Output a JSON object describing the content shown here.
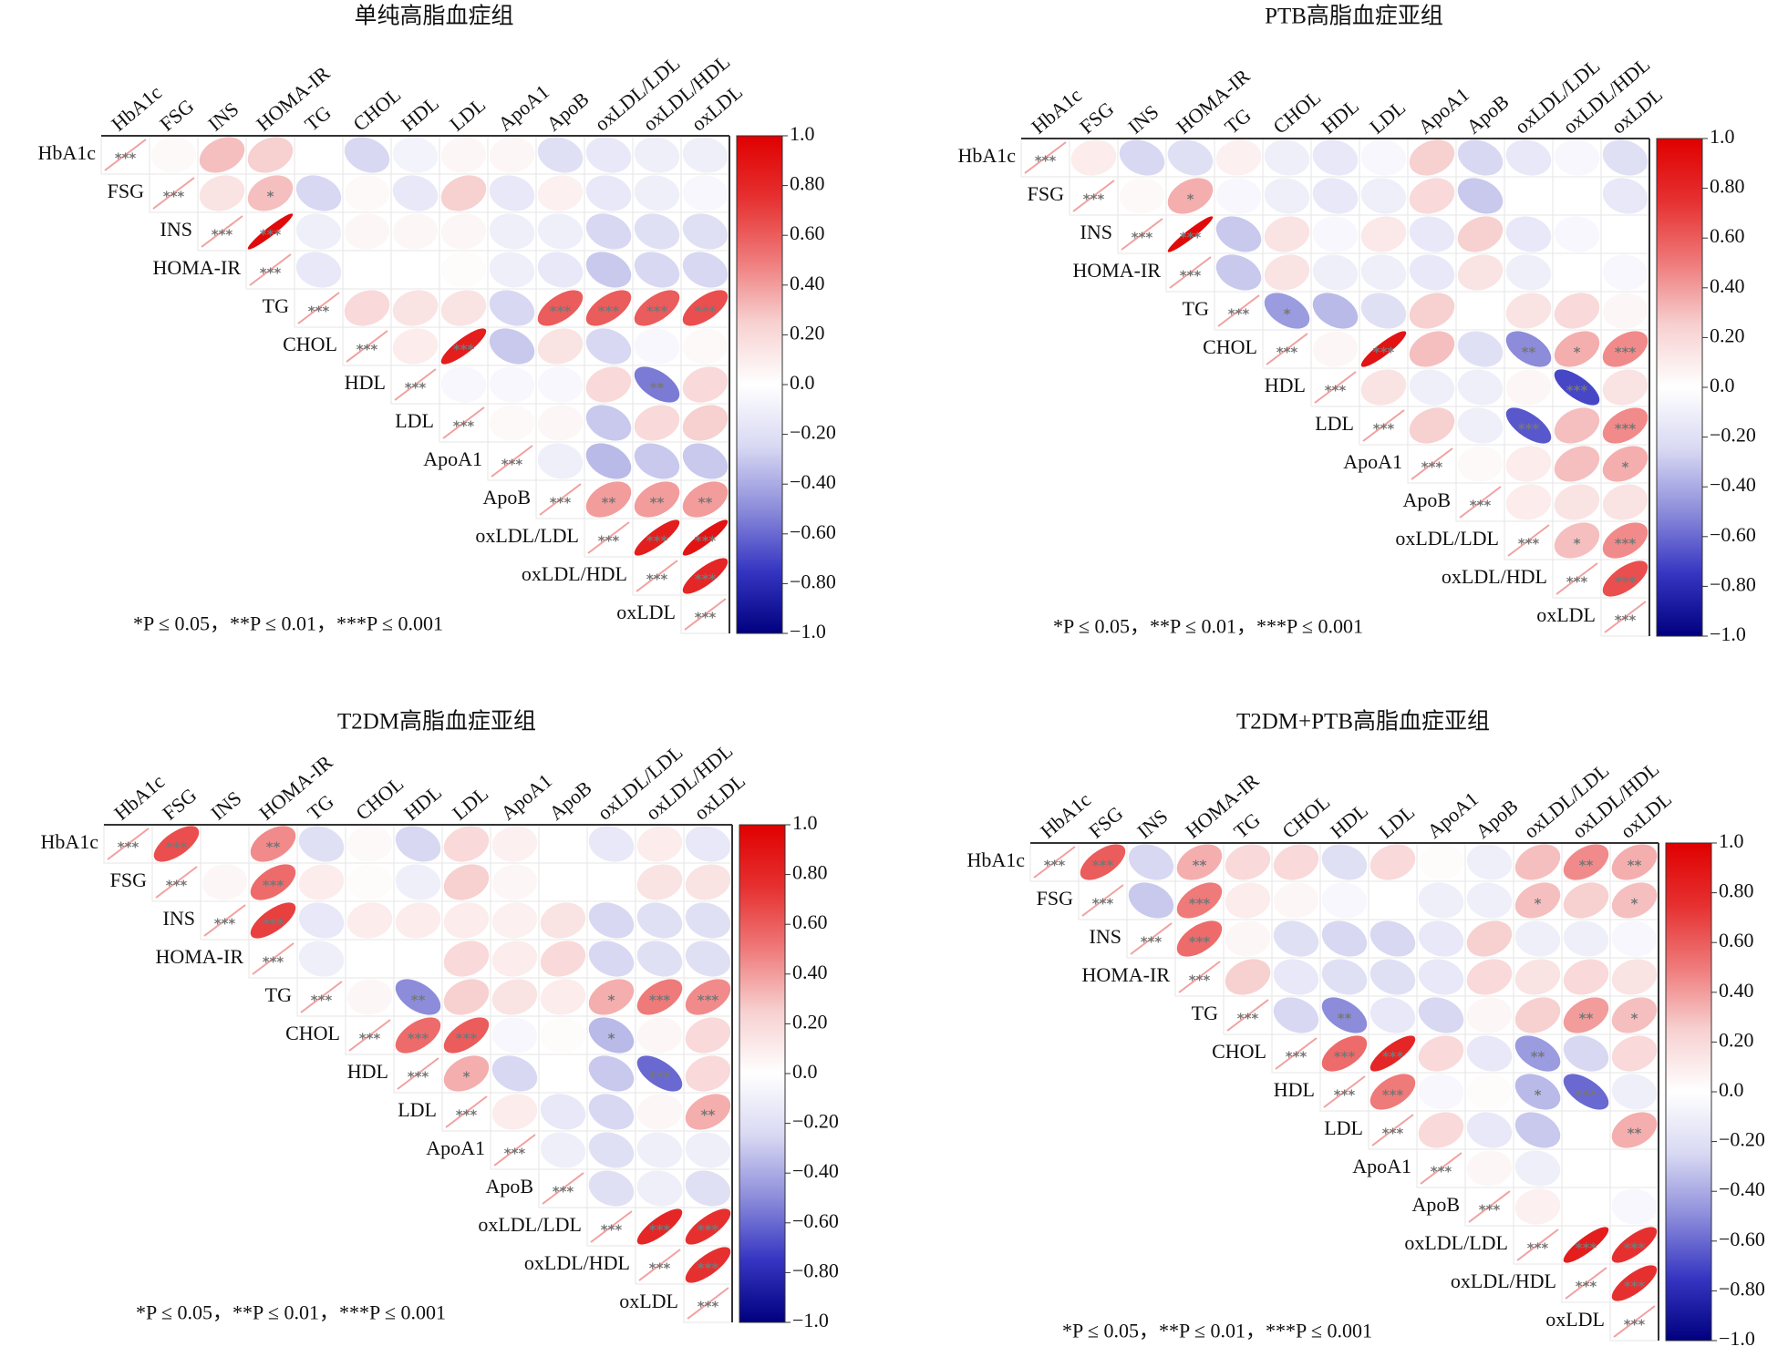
{
  "chart_data": [
    {
      "type": "correlation_matrix",
      "title": "单纯高脂血症组",
      "labels": [
        "HbA1c",
        "FSG",
        "INS",
        "HOMA-IR",
        "TG",
        "CHOL",
        "HDL",
        "LDL",
        "ApoA1",
        "ApoB",
        "oxLDL/LDL",
        "oxLDL/HDL",
        "oxLDL"
      ],
      "values": [
        [
          1,
          0.03,
          0.3,
          0.25,
          0,
          -0.25,
          -0.08,
          0.05,
          0.05,
          -0.2,
          -0.15,
          -0.1,
          -0.1
        ],
        [
          1,
          0.15,
          0.3,
          -0.25,
          0.03,
          -0.15,
          0.25,
          -0.15,
          0.08,
          -0.15,
          -0.1,
          -0.05
        ],
        [
          1,
          0.95,
          -0.1,
          0.05,
          0.05,
          0.05,
          -0.1,
          -0.1,
          -0.25,
          -0.2,
          -0.2
        ],
        [
          1,
          -0.15,
          0,
          0,
          0.02,
          -0.1,
          -0.15,
          -0.3,
          -0.25,
          -0.25
        ],
        [
          1,
          0.2,
          0.15,
          0.15,
          -0.25,
          0.6,
          0.6,
          0.6,
          0.65
        ],
        [
          1,
          0.1,
          0.85,
          -0.3,
          0.15,
          -0.25,
          -0.05,
          0.03
        ],
        [
          1,
          -0.05,
          -0.05,
          -0.05,
          0.2,
          -0.55,
          0.2
        ],
        [
          1,
          0.03,
          0.05,
          -0.3,
          0.2,
          0.25
        ],
        [
          1,
          -0.1,
          -0.35,
          -0.3,
          -0.3
        ],
        [
          1,
          0.4,
          0.4,
          0.4
        ],
        [
          1,
          0.85,
          0.9
        ],
        [
          1,
          0.8
        ],
        [
          1
        ]
      ],
      "stars": [
        [
          "***",
          null,
          null,
          null,
          null,
          null,
          null,
          null,
          null,
          null,
          null,
          null,
          null
        ],
        [
          "***",
          null,
          "*",
          null,
          null,
          null,
          null,
          null,
          null,
          null,
          null,
          null
        ],
        [
          "***",
          "***",
          null,
          null,
          null,
          null,
          null,
          null,
          null,
          null,
          null
        ],
        [
          "***",
          null,
          null,
          null,
          null,
          null,
          null,
          null,
          null,
          null
        ],
        [
          "***",
          null,
          null,
          null,
          null,
          "***",
          "***",
          "***",
          "***"
        ],
        [
          "***",
          null,
          "***",
          null,
          null,
          null,
          null,
          null
        ],
        [
          "***",
          null,
          null,
          null,
          null,
          "**",
          null
        ],
        [
          "***",
          null,
          null,
          null,
          null,
          null
        ],
        [
          "***",
          null,
          null,
          null,
          null
        ],
        [
          "***",
          "**",
          "**",
          "**"
        ],
        [
          "***",
          "***",
          "***"
        ],
        [
          "***",
          "***"
        ],
        [
          "***"
        ]
      ],
      "note": "*P ≤ 0.05，**P ≤ 0.01，***P ≤ 0.001",
      "clim": [
        -1,
        1
      ],
      "cticks": [
        {
          "value": 1,
          "label": "1.0"
        },
        {
          "value": 0.8,
          "label": "0.80"
        },
        {
          "value": 0.6,
          "label": "0.60"
        },
        {
          "value": 0.4,
          "label": "0.40"
        },
        {
          "value": 0.2,
          "label": "0.20"
        },
        {
          "value": 0,
          "label": "0.0"
        },
        {
          "value": -0.2,
          "label": "−0.20"
        },
        {
          "value": -0.4,
          "label": "−0.40"
        },
        {
          "value": -0.6,
          "label": "−0.60"
        },
        {
          "value": -0.8,
          "label": "−0.80"
        },
        {
          "value": -1,
          "label": "−1.0"
        }
      ],
      "colormap": [
        "#00007f",
        "#3535c2",
        "#8c8cdb",
        "#d8d8f3",
        "#ffffff",
        "#f7d0d0",
        "#ef7a7a",
        "#e63030",
        "#e00000"
      ]
    },
    {
      "type": "correlation_matrix",
      "title": "PTB高脂血症亚组",
      "labels": [
        "HbA1c",
        "FSG",
        "INS",
        "HOMA-IR",
        "TG",
        "CHOL",
        "HDL",
        "LDL",
        "ApoA1",
        "ApoB",
        "oxLDL/LDL",
        "oxLDL/HDL",
        "oxLDL"
      ],
      "values": [
        [
          1,
          0.1,
          -0.25,
          -0.2,
          0.08,
          -0.1,
          -0.15,
          -0.05,
          0.25,
          -0.25,
          -0.15,
          -0.05,
          -0.2
        ],
        [
          1,
          0.03,
          0.35,
          -0.05,
          -0.1,
          -0.15,
          -0.1,
          0.2,
          -0.3,
          0,
          0,
          -0.15
        ],
        [
          1,
          0.95,
          -0.3,
          0.15,
          -0.05,
          0.12,
          -0.15,
          0.25,
          -0.15,
          -0.05,
          0
        ],
        [
          1,
          -0.3,
          0.15,
          -0.1,
          -0.1,
          -0.15,
          0.15,
          -0.1,
          0,
          -0.05
        ],
        [
          1,
          -0.45,
          -0.35,
          -0.2,
          0.25,
          0,
          0.15,
          0.2,
          0.05
        ],
        [
          1,
          0.05,
          0.9,
          0.3,
          -0.2,
          -0.5,
          0.35,
          0.45
        ],
        [
          1,
          0.15,
          -0.1,
          -0.1,
          0.05,
          -0.7,
          0.15
        ],
        [
          1,
          0.25,
          -0.1,
          -0.65,
          0.3,
          0.45
        ],
        [
          1,
          0.03,
          0.1,
          0.3,
          0.35
        ],
        [
          1,
          0.1,
          0.15,
          0.15
        ],
        [
          1,
          0.3,
          0.45
        ],
        [
          1,
          0.65
        ],
        [
          1
        ]
      ],
      "stars": [
        [
          "***",
          null,
          null,
          null,
          null,
          null,
          null,
          null,
          null,
          null,
          null,
          null,
          null
        ],
        [
          "***",
          null,
          "*",
          null,
          null,
          null,
          null,
          null,
          null,
          null,
          null,
          null
        ],
        [
          "***",
          "***",
          null,
          null,
          null,
          null,
          null,
          null,
          null,
          null,
          null
        ],
        [
          "***",
          null,
          null,
          null,
          null,
          null,
          null,
          null,
          null,
          null
        ],
        [
          "***",
          "*",
          null,
          null,
          null,
          null,
          null,
          null,
          null
        ],
        [
          "***",
          null,
          "***",
          null,
          null,
          "**",
          "*",
          "***"
        ],
        [
          "***",
          null,
          null,
          null,
          null,
          "***",
          null
        ],
        [
          "***",
          null,
          null,
          "***",
          null,
          "***"
        ],
        [
          "***",
          null,
          null,
          null,
          "*"
        ],
        [
          "***",
          null,
          null,
          null
        ],
        [
          "***",
          "*",
          "***"
        ],
        [
          "***",
          "***"
        ],
        [
          "***"
        ]
      ],
      "note": "*P ≤ 0.05，**P ≤ 0.01，***P ≤ 0.001",
      "clim": [
        -1,
        1
      ],
      "cticks": [
        {
          "value": 1,
          "label": "1.0"
        },
        {
          "value": 0.8,
          "label": "0.80"
        },
        {
          "value": 0.6,
          "label": "0.60"
        },
        {
          "value": 0.4,
          "label": "0.40"
        },
        {
          "value": 0.2,
          "label": "0.20"
        },
        {
          "value": 0,
          "label": "0.0"
        },
        {
          "value": -0.2,
          "label": "−0.20"
        },
        {
          "value": -0.4,
          "label": "−0.40"
        },
        {
          "value": -0.6,
          "label": "−0.60"
        },
        {
          "value": -0.8,
          "label": "−0.80"
        },
        {
          "value": -1,
          "label": "−1.0"
        }
      ],
      "colormap": [
        "#00007f",
        "#3535c2",
        "#8c8cdb",
        "#d8d8f3",
        "#ffffff",
        "#f7d0d0",
        "#ef7a7a",
        "#e63030",
        "#e00000"
      ]
    },
    {
      "type": "correlation_matrix",
      "title": "T2DM高脂血症亚组",
      "labels": [
        "HbA1c",
        "FSG",
        "INS",
        "HOMA-IR",
        "TG",
        "CHOL",
        "HDL",
        "LDL",
        "ApoA1",
        "ApoB",
        "oxLDL/LDL",
        "oxLDL/HDL",
        "oxLDL"
      ],
      "values": [
        [
          1,
          0.65,
          0,
          0.45,
          -0.2,
          0.03,
          -0.25,
          0.2,
          0.08,
          0,
          -0.15,
          0.1,
          -0.15
        ],
        [
          1,
          0.05,
          0.55,
          0.1,
          0.02,
          -0.1,
          0.25,
          0.05,
          0,
          0,
          0.15,
          0.15
        ],
        [
          1,
          0.7,
          -0.15,
          0.1,
          0.1,
          0.1,
          0.08,
          0.15,
          -0.25,
          -0.2,
          -0.2
        ],
        [
          1,
          -0.1,
          0,
          0,
          0.2,
          0.1,
          0.2,
          -0.25,
          -0.2,
          -0.2
        ],
        [
          1,
          0.05,
          -0.5,
          0.25,
          0.15,
          0.1,
          0.35,
          0.5,
          0.45
        ],
        [
          1,
          0.55,
          0.6,
          -0.05,
          0.02,
          -0.35,
          0.05,
          0.2
        ],
        [
          1,
          0.35,
          -0.25,
          0,
          -0.3,
          -0.6,
          0.2
        ],
        [
          1,
          0.1,
          -0.15,
          -0.25,
          0.05,
          0.35
        ],
        [
          1,
          -0.1,
          -0.2,
          -0.1,
          -0.1
        ],
        [
          1,
          -0.2,
          -0.1,
          -0.2
        ],
        [
          1,
          0.8,
          0.75
        ],
        [
          1,
          0.75
        ],
        [
          1
        ]
      ],
      "stars": [
        [
          "***",
          "***",
          null,
          "**",
          null,
          null,
          null,
          null,
          null,
          null,
          null,
          null,
          null
        ],
        [
          "***",
          null,
          "***",
          null,
          null,
          null,
          null,
          null,
          null,
          null,
          null,
          null
        ],
        [
          "***",
          "***",
          null,
          null,
          null,
          null,
          null,
          null,
          null,
          null,
          null
        ],
        [
          "***",
          null,
          null,
          null,
          null,
          null,
          null,
          null,
          null,
          null
        ],
        [
          "***",
          null,
          "**",
          null,
          null,
          null,
          "*",
          "***",
          "***"
        ],
        [
          "***",
          "***",
          "***",
          null,
          null,
          "*",
          null,
          null
        ],
        [
          "***",
          "*",
          null,
          null,
          null,
          "***",
          null
        ],
        [
          "***",
          null,
          null,
          null,
          null,
          "**"
        ],
        [
          "***",
          null,
          null,
          null,
          null
        ],
        [
          "***",
          null,
          null,
          null
        ],
        [
          "***",
          "***",
          "***"
        ],
        [
          "***",
          "***"
        ],
        [
          "***"
        ]
      ],
      "note": "*P ≤ 0.05，**P ≤ 0.01，***P ≤ 0.001",
      "clim": [
        -1,
        1
      ],
      "cticks": [
        {
          "value": 1,
          "label": "1.0"
        },
        {
          "value": 0.8,
          "label": "0.80"
        },
        {
          "value": 0.6,
          "label": "0.60"
        },
        {
          "value": 0.4,
          "label": "0.40"
        },
        {
          "value": 0.2,
          "label": "0.20"
        },
        {
          "value": 0,
          "label": "0.0"
        },
        {
          "value": -0.2,
          "label": "−0.20"
        },
        {
          "value": -0.4,
          "label": "−0.40"
        },
        {
          "value": -0.6,
          "label": "−0.60"
        },
        {
          "value": -0.8,
          "label": "−0.80"
        },
        {
          "value": -1,
          "label": "−1.0"
        }
      ],
      "colormap": [
        "#00007f",
        "#3535c2",
        "#8c8cdb",
        "#d8d8f3",
        "#ffffff",
        "#f7d0d0",
        "#ef7a7a",
        "#e63030",
        "#e00000"
      ]
    },
    {
      "type": "correlation_matrix",
      "title": "T2DM+PTB高脂血症亚组",
      "labels": [
        "HbA1c",
        "FSG",
        "INS",
        "HOMA-IR",
        "TG",
        "CHOL",
        "HDL",
        "LDL",
        "ApoA1",
        "ApoB",
        "oxLDL/LDL",
        "oxLDL/HDL",
        "oxLDL"
      ],
      "values": [
        [
          1,
          0.6,
          -0.25,
          0.35,
          0.2,
          0.2,
          -0.2,
          0.2,
          0.02,
          -0.1,
          0.3,
          0.45,
          0.35
        ],
        [
          1,
          -0.3,
          0.5,
          0.1,
          0.05,
          -0.05,
          0,
          -0.1,
          -0.1,
          0.3,
          0.25,
          0.3
        ],
        [
          1,
          0.55,
          0.05,
          -0.2,
          -0.25,
          -0.25,
          -0.15,
          0.25,
          -0.1,
          -0.1,
          -0.05
        ],
        [
          1,
          0.25,
          -0.15,
          -0.2,
          -0.2,
          -0.15,
          0.2,
          0.15,
          0.2,
          0.15
        ],
        [
          1,
          -0.25,
          -0.5,
          -0.15,
          -0.25,
          0.05,
          0.25,
          0.4,
          0.3
        ],
        [
          1,
          0.55,
          0.8,
          0.2,
          -0.15,
          -0.45,
          -0.25,
          0.2
        ],
        [
          1,
          0.5,
          -0.05,
          0.02,
          -0.35,
          -0.6,
          -0.1
        ],
        [
          1,
          0.2,
          -0.15,
          -0.3,
          0,
          0.35
        ],
        [
          1,
          0.05,
          -0.1,
          0,
          0
        ],
        [
          1,
          0.08,
          0,
          -0.05
        ],
        [
          1,
          0.85,
          0.75
        ],
        [
          1,
          0.75
        ],
        [
          1
        ]
      ],
      "stars": [
        [
          "***",
          "***",
          null,
          "**",
          null,
          null,
          null,
          null,
          null,
          null,
          null,
          "**",
          "**"
        ],
        [
          "***",
          null,
          "***",
          null,
          null,
          null,
          null,
          null,
          null,
          "*",
          null,
          "*"
        ],
        [
          "***",
          "***",
          null,
          null,
          null,
          null,
          null,
          null,
          null,
          null,
          null
        ],
        [
          "***",
          null,
          null,
          null,
          null,
          null,
          null,
          null,
          null,
          null
        ],
        [
          "***",
          null,
          "**",
          null,
          null,
          null,
          null,
          "**",
          "*"
        ],
        [
          "***",
          "***",
          "***",
          null,
          null,
          "**",
          null,
          null
        ],
        [
          "***",
          "***",
          null,
          null,
          "*",
          "***",
          null
        ],
        [
          "***",
          null,
          null,
          null,
          null,
          "**"
        ],
        [
          "***",
          null,
          null,
          null,
          null
        ],
        [
          "***",
          null,
          null,
          null
        ],
        [
          "***",
          "***",
          "***"
        ],
        [
          "***",
          "***"
        ],
        [
          "***"
        ]
      ],
      "note": "*P ≤ 0.05，**P ≤ 0.01，***P ≤ 0.001",
      "clim": [
        -1,
        1
      ],
      "cticks": [
        {
          "value": 1,
          "label": "1.0"
        },
        {
          "value": 0.8,
          "label": "0.80"
        },
        {
          "value": 0.6,
          "label": "0.60"
        },
        {
          "value": 0.4,
          "label": "0.40"
        },
        {
          "value": 0.2,
          "label": "0.20"
        },
        {
          "value": 0,
          "label": "0.0"
        },
        {
          "value": -0.2,
          "label": "−0.20"
        },
        {
          "value": -0.4,
          "label": "−0.40"
        },
        {
          "value": -0.6,
          "label": "−0.60"
        },
        {
          "value": -0.8,
          "label": "−0.80"
        },
        {
          "value": -1,
          "label": "−1.0"
        }
      ],
      "colormap": [
        "#00007f",
        "#3535c2",
        "#8c8cdb",
        "#d8d8f3",
        "#ffffff",
        "#f7d0d0",
        "#ef7a7a",
        "#e63030",
        "#e00000"
      ]
    }
  ]
}
